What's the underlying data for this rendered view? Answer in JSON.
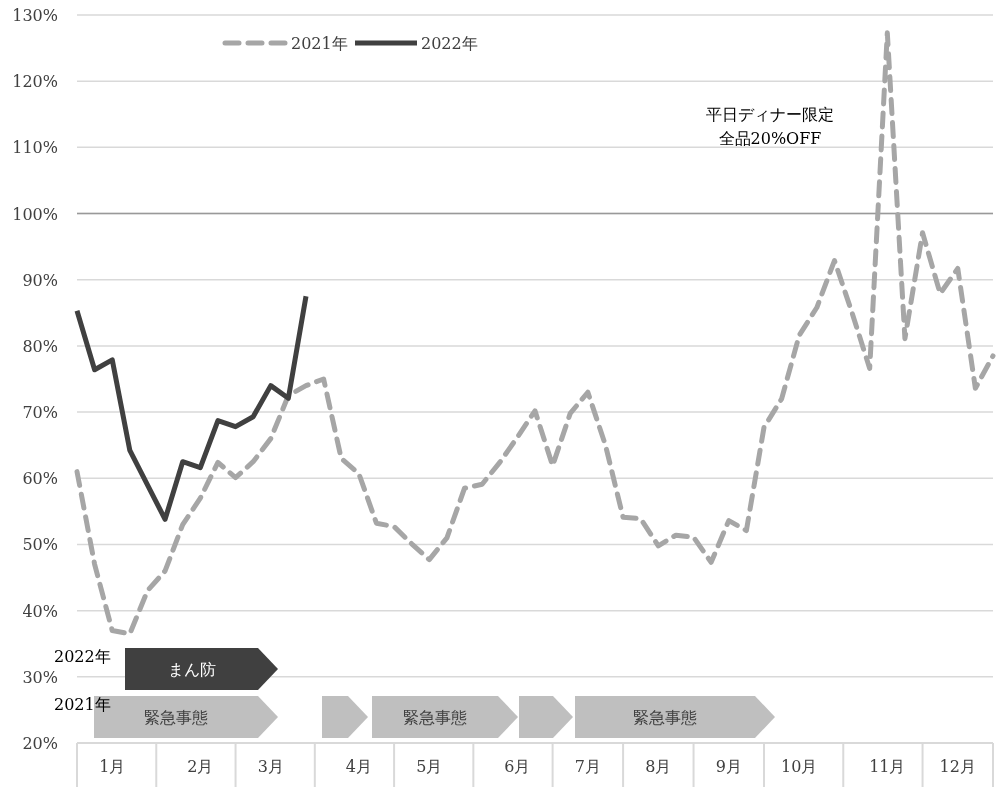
{
  "chart_data": {
    "type": "line",
    "categories": [
      null,
      null,
      "1月",
      null,
      null,
      null,
      null,
      "2月",
      null,
      null,
      null,
      "3月",
      null,
      null,
      null,
      null,
      "4月",
      null,
      null,
      null,
      "5月",
      null,
      null,
      null,
      null,
      "6月",
      null,
      null,
      null,
      "7月",
      null,
      null,
      null,
      "8月",
      null,
      null,
      null,
      "9月",
      null,
      null,
      null,
      "10月",
      null,
      null,
      null,
      null,
      "11月",
      null,
      null,
      null,
      "12月",
      null,
      null
    ],
    "series": [
      {
        "name": "2021年",
        "color": "#a6a6a6",
        "line_style": "dashed",
        "values": [
          61,
          47,
          37,
          36.5,
          43,
          46,
          53,
          57,
          62.4,
          60.1,
          62.5,
          66,
          72.5,
          74,
          75,
          63,
          60.7,
          53.2,
          52.7,
          50.1,
          47.7,
          51,
          58.5,
          59.1,
          62.4,
          66.2,
          70.2,
          61.9,
          69.8,
          73,
          65,
          54.1,
          53.9,
          49.8,
          51.4,
          51.1,
          47.3,
          53.6,
          52.1,
          67.7,
          72,
          81.6,
          85.8,
          92.9,
          85,
          76.6,
          127.3,
          81.1,
          97.1,
          87.9,
          91.7,
          73.6,
          78.5
        ]
      },
      {
        "name": "2022年",
        "color": "#404040",
        "line_style": "solid",
        "values": [
          85.3,
          76.4,
          77.9,
          64.2,
          59,
          53.8,
          62.5,
          61.6,
          68.7,
          67.8,
          69.3,
          74,
          72.1,
          87.5,
          null,
          null,
          null,
          null,
          null,
          null,
          null,
          null,
          null,
          null,
          null,
          null,
          null,
          null,
          null,
          null,
          null,
          null,
          null,
          null,
          null,
          null,
          null,
          null,
          null,
          null,
          null,
          null,
          null,
          null,
          null,
          null,
          null,
          null,
          null,
          null,
          null,
          null,
          null
        ]
      }
    ],
    "ylim": [
      20,
      130
    ],
    "yticks": [
      {
        "value": 20,
        "label": "20%"
      },
      {
        "value": 30,
        "label": "30%"
      },
      {
        "value": 40,
        "label": "40%"
      },
      {
        "value": 50,
        "label": "50%"
      },
      {
        "value": 60,
        "label": "60%"
      },
      {
        "value": 70,
        "label": "70%"
      },
      {
        "value": 80,
        "label": "80%"
      },
      {
        "value": 90,
        "label": "90%"
      },
      {
        "value": 100,
        "label": "100%"
      },
      {
        "value": 110,
        "label": "110%"
      },
      {
        "value": 120,
        "label": "120%"
      },
      {
        "value": 130,
        "label": "130%"
      }
    ],
    "grid": "y",
    "legend": "top left",
    "ref_lines": [
      {
        "axis": "y",
        "value": 100,
        "color": "#999999"
      }
    ],
    "annotations": [
      "平日ディナー限定",
      "全品20%OFF",
      "2022年",
      "2021年",
      "まん防",
      "緊急事態",
      "緊急事態",
      "緊急事態"
    ]
  }
}
